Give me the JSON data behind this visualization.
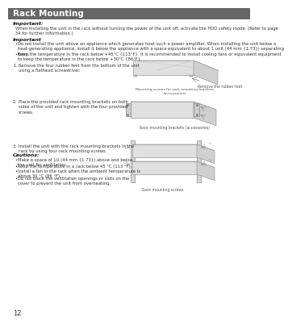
{
  "title": "Rack Mounting",
  "title_bg_color": "#666666",
  "title_text_color": "#ffffff",
  "page_bg_color": "#ffffff",
  "page_number": "12",
  "body_text_color": "#333333",
  "important1_label": "Important:",
  "important1_text": "When installing the unit in the rack without turning the power of the unit off, activate the HDD safety mode. (Refer to page\n34 for further information.)",
  "important2_label": "Important",
  "important2_bullets": [
    "Do not install the unit above an appliance which generates heat such a power amplifier. When installing the unit below a\nheat-generating appliance, install it below the appliance with a space equivalent to about 1 unit (44 mm {1.73}) separating\nthem.",
    "Keep the temperature in the rack below +45°C {113°F}. It is recommended to install cooling fans or equivalent equipment\nto keep the temperature in the rack below +30°C {86°F}."
  ],
  "step1_num": "1.",
  "step1_text": "Remove the four rubber feet from the bottom of the unit\nusing a flathead screwdriver.",
  "step1_caption": "Remove the rubber feet.",
  "step2_num": "2.",
  "step2_text": "Place the provided rack mounting brackets on both\nsides of the unit and tighten with the four provided\nscrews.",
  "step2_caption1": "Mounting screws for rack mounting brackets\n(accessories)",
  "step2_caption2": "Rack mounting brackets (accessories)",
  "step3_num": "3.",
  "step3_text": "Install the unit with the rack mounting brackets in the\nrack by using four rack mounting screws.",
  "cautions_label": "Cautions:",
  "cautions_bullets": [
    "Make a space of 1U (44 mm {1.73}) above and below\nthe unit for ventilation.",
    "Keep the temperature in a rack below 45 °C (113 °F).",
    "Install a fan in the rack when the ambient temperature is\nabove 30 °C (86 °F).",
    "Do not block the ventilation openings or slots on the\ncover to prevent the unit from overheating."
  ],
  "step3_caption": "Rack mounting screws"
}
